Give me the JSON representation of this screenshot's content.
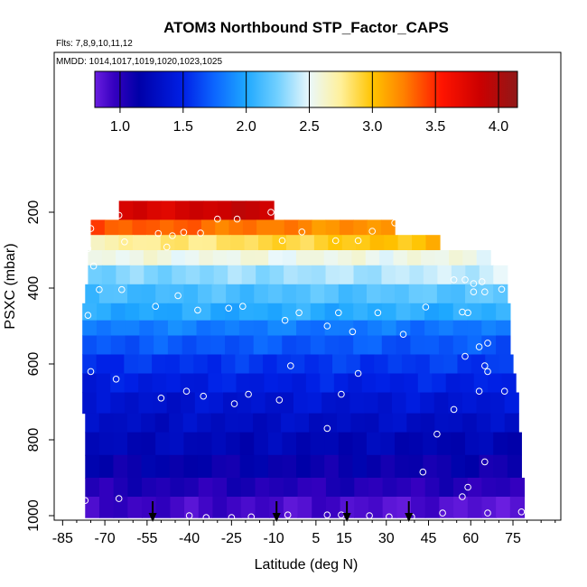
{
  "chart_data": {
    "type": "heatmap",
    "title": "ATOM3 Northbound STP_Factor_CAPS",
    "flights_label": "Flts: 7,8,9,10,11,12",
    "dates_label": "MMDD: 1014,1017,1019,1020,1023,1025",
    "xlabel": "Latitude (deg N)",
    "ylabel": "PSXC (mbar)",
    "xlim": [
      -88,
      92
    ],
    "ylim": [
      1010,
      0
    ],
    "x_ticks": [
      -85,
      -70,
      -55,
      -40,
      -25,
      -10,
      5,
      15,
      30,
      45,
      60,
      75
    ],
    "y_ticks": [
      200,
      400,
      600,
      800,
      1000
    ],
    "colorbar": {
      "range": [
        0.8,
        4.15
      ],
      "ticks": [
        1.0,
        1.5,
        2.0,
        2.5,
        3.0,
        3.5,
        4.0
      ],
      "tick_labels": [
        "1.0",
        "1.5",
        "2.0",
        "2.5",
        "3.0",
        "3.5",
        "4.0"
      ]
    },
    "colorscale": [
      {
        "v": 0.8,
        "c": "#6a1ee0"
      },
      {
        "v": 0.95,
        "c": "#3600c0"
      },
      {
        "v": 1.15,
        "c": "#0000a8"
      },
      {
        "v": 1.5,
        "c": "#0020e6"
      },
      {
        "v": 1.75,
        "c": "#0c66ff"
      },
      {
        "v": 2.0,
        "c": "#1ea8ff"
      },
      {
        "v": 2.25,
        "c": "#72d0ff"
      },
      {
        "v": 2.5,
        "c": "#eaf8fb"
      },
      {
        "v": 2.75,
        "c": "#fff09a"
      },
      {
        "v": 3.0,
        "c": "#ffc400"
      },
      {
        "v": 3.25,
        "c": "#ff8000"
      },
      {
        "v": 3.55,
        "c": "#ff1400"
      },
      {
        "v": 3.85,
        "c": "#cc0000"
      },
      {
        "v": 4.15,
        "c": "#901818"
      }
    ],
    "layers": [
      {
        "p_top": 170,
        "p_bot": 220,
        "x_start": -65,
        "x_end": -10,
        "v_start": 3.75,
        "v_end": 3.9
      },
      {
        "p_top": 220,
        "p_bot": 260,
        "x_start": -75,
        "x_end": 33,
        "v_start": 3.4,
        "v_end": 3.15
      },
      {
        "p_top": 260,
        "p_bot": 300,
        "x_start": -75,
        "x_end": 49,
        "v_start": 2.7,
        "v_end": 3.05
      },
      {
        "p_top": 300,
        "p_bot": 340,
        "x_start": -76,
        "x_end": 67,
        "v_start": 2.55,
        "v_end": 2.55
      },
      {
        "p_top": 340,
        "p_bot": 390,
        "x_start": -76,
        "x_end": 73,
        "v_start": 2.25,
        "v_end": 2.45
      },
      {
        "p_top": 390,
        "p_bot": 440,
        "x_start": -77,
        "x_end": 73,
        "v_start": 2.1,
        "v_end": 2.2
      },
      {
        "p_top": 440,
        "p_bot": 485,
        "x_start": -78,
        "x_end": 74,
        "v_start": 2.0,
        "v_end": 2.05
      },
      {
        "p_top": 485,
        "p_bot": 525,
        "x_start": -78,
        "x_end": 74,
        "v_start": 1.85,
        "v_end": 1.8
      },
      {
        "p_top": 525,
        "p_bot": 575,
        "x_start": -78,
        "x_end": 74,
        "v_start": 1.7,
        "v_end": 1.7
      },
      {
        "p_top": 575,
        "p_bot": 625,
        "x_start": -78,
        "x_end": 75,
        "v_start": 1.55,
        "v_end": 1.6
      },
      {
        "p_top": 625,
        "p_bot": 675,
        "x_start": -78,
        "x_end": 76,
        "v_start": 1.45,
        "v_end": 1.5
      },
      {
        "p_top": 675,
        "p_bot": 730,
        "x_start": -78,
        "x_end": 77,
        "v_start": 1.35,
        "v_end": 1.4
      },
      {
        "p_top": 730,
        "p_bot": 780,
        "x_start": -77,
        "x_end": 77,
        "v_start": 1.3,
        "v_end": 1.3
      },
      {
        "p_top": 780,
        "p_bot": 840,
        "x_start": -77,
        "x_end": 78,
        "v_start": 1.25,
        "v_end": 1.2
      },
      {
        "p_top": 840,
        "p_bot": 900,
        "x_start": -77,
        "x_end": 78,
        "v_start": 1.15,
        "v_end": 1.1
      },
      {
        "p_top": 900,
        "p_bot": 950,
        "x_start": -77,
        "x_end": 79,
        "v_start": 1.05,
        "v_end": 1.0
      },
      {
        "p_top": 950,
        "p_bot": 1005,
        "x_start": -77,
        "x_end": 79,
        "v_start": 0.95,
        "v_end": 0.85
      }
    ],
    "points": [
      {
        "lat": -65,
        "p": 208
      },
      {
        "lat": -30,
        "p": 218
      },
      {
        "lat": -23,
        "p": 218
      },
      {
        "lat": -11,
        "p": 200
      },
      {
        "lat": 33,
        "p": 228
      },
      {
        "lat": -75,
        "p": 243
      },
      {
        "lat": -51,
        "p": 256
      },
      {
        "lat": -46,
        "p": 262
      },
      {
        "lat": -42,
        "p": 253
      },
      {
        "lat": -36,
        "p": 255
      },
      {
        "lat": 0,
        "p": 252
      },
      {
        "lat": 25,
        "p": 250
      },
      {
        "lat": -63,
        "p": 278
      },
      {
        "lat": -48,
        "p": 292
      },
      {
        "lat": -7,
        "p": 275
      },
      {
        "lat": 12,
        "p": 275
      },
      {
        "lat": 20,
        "p": 275
      },
      {
        "lat": -76,
        "p": 296
      },
      {
        "lat": -74,
        "p": 342
      },
      {
        "lat": 54,
        "p": 378
      },
      {
        "lat": 58,
        "p": 378
      },
      {
        "lat": 61,
        "p": 388
      },
      {
        "lat": 64,
        "p": 383
      },
      {
        "lat": -72,
        "p": 404
      },
      {
        "lat": -64,
        "p": 404
      },
      {
        "lat": -44,
        "p": 420
      },
      {
        "lat": 61,
        "p": 410
      },
      {
        "lat": 65,
        "p": 410
      },
      {
        "lat": 71,
        "p": 403
      },
      {
        "lat": -52,
        "p": 448
      },
      {
        "lat": -37,
        "p": 458
      },
      {
        "lat": -26,
        "p": 453
      },
      {
        "lat": -21,
        "p": 448
      },
      {
        "lat": -1,
        "p": 465
      },
      {
        "lat": 13,
        "p": 465
      },
      {
        "lat": 27,
        "p": 465
      },
      {
        "lat": 44,
        "p": 450
      },
      {
        "lat": 57,
        "p": 463
      },
      {
        "lat": 59,
        "p": 465
      },
      {
        "lat": -76,
        "p": 472
      },
      {
        "lat": -6,
        "p": 485
      },
      {
        "lat": 9,
        "p": 500
      },
      {
        "lat": 18,
        "p": 515
      },
      {
        "lat": 36,
        "p": 522
      },
      {
        "lat": 63,
        "p": 555
      },
      {
        "lat": 66,
        "p": 545
      },
      {
        "lat": 58,
        "p": 580
      },
      {
        "lat": -4,
        "p": 605
      },
      {
        "lat": 20,
        "p": 625
      },
      {
        "lat": 66,
        "p": 620
      },
      {
        "lat": -75,
        "p": 620
      },
      {
        "lat": -66,
        "p": 640
      },
      {
        "lat": 65,
        "p": 605
      },
      {
        "lat": -50,
        "p": 690
      },
      {
        "lat": -41,
        "p": 672
      },
      {
        "lat": -35,
        "p": 685
      },
      {
        "lat": -24,
        "p": 705
      },
      {
        "lat": -19,
        "p": 680
      },
      {
        "lat": -8,
        "p": 695
      },
      {
        "lat": 14,
        "p": 680
      },
      {
        "lat": 54,
        "p": 720
      },
      {
        "lat": 63,
        "p": 672
      },
      {
        "lat": 72,
        "p": 672
      },
      {
        "lat": 9,
        "p": 770
      },
      {
        "lat": 48,
        "p": 785
      },
      {
        "lat": 65,
        "p": 858
      },
      {
        "lat": 43,
        "p": 885
      },
      {
        "lat": 59,
        "p": 925
      },
      {
        "lat": -77,
        "p": 960
      },
      {
        "lat": -65,
        "p": 955
      },
      {
        "lat": 57,
        "p": 950
      },
      {
        "lat": -40,
        "p": 1000
      },
      {
        "lat": -34,
        "p": 1005
      },
      {
        "lat": -25,
        "p": 1005
      },
      {
        "lat": -18,
        "p": 1003
      },
      {
        "lat": -5,
        "p": 998
      },
      {
        "lat": 9,
        "p": 998
      },
      {
        "lat": 14,
        "p": 998
      },
      {
        "lat": 24,
        "p": 1000
      },
      {
        "lat": 31,
        "p": 1003
      },
      {
        "lat": 39,
        "p": 1003
      },
      {
        "lat": 50,
        "p": 993
      },
      {
        "lat": 66,
        "p": 993
      },
      {
        "lat": 78,
        "p": 990
      }
    ],
    "arrows_lat": [
      -53,
      -9,
      16,
      38
    ]
  }
}
